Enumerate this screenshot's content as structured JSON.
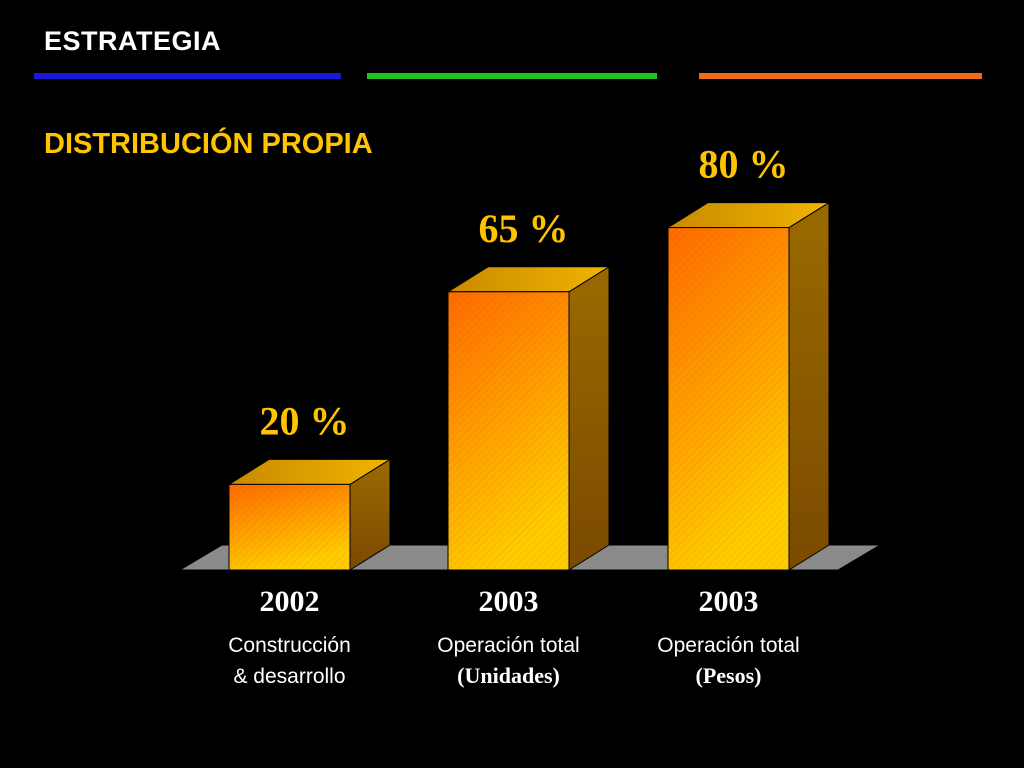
{
  "header": {
    "title": "ESTRATEGIA"
  },
  "subtitle": "DISTRIBUCIÓN PROPIA",
  "colors": {
    "rule_blue": "#1a1ad6",
    "rule_green": "#1fc21f",
    "rule_orange": "#f26a1b",
    "subtitle": "#ffc400",
    "value_label": "#ffc400",
    "bar_front_top": "#ff6a00",
    "bar_front_bottom": "#ffcc00",
    "bar_side": "#7a4a00",
    "floor": "#8a8a8a"
  },
  "chart_data": {
    "type": "bar",
    "unit": "%",
    "ylim": [
      0,
      100
    ],
    "values": [
      20,
      65,
      80
    ],
    "value_labels": [
      "20 %",
      "65 %",
      "80 %"
    ],
    "categories": [
      "2002",
      "2003",
      "2003"
    ],
    "caption_line1": [
      "Construcción",
      "Operación total",
      "Operación total"
    ],
    "caption_line2": [
      "&  desarrollo",
      "(Unidades)",
      "(Pesos)"
    ],
    "caption_line2_style": [
      "sans",
      "serif-bold",
      "serif-bold"
    ]
  }
}
